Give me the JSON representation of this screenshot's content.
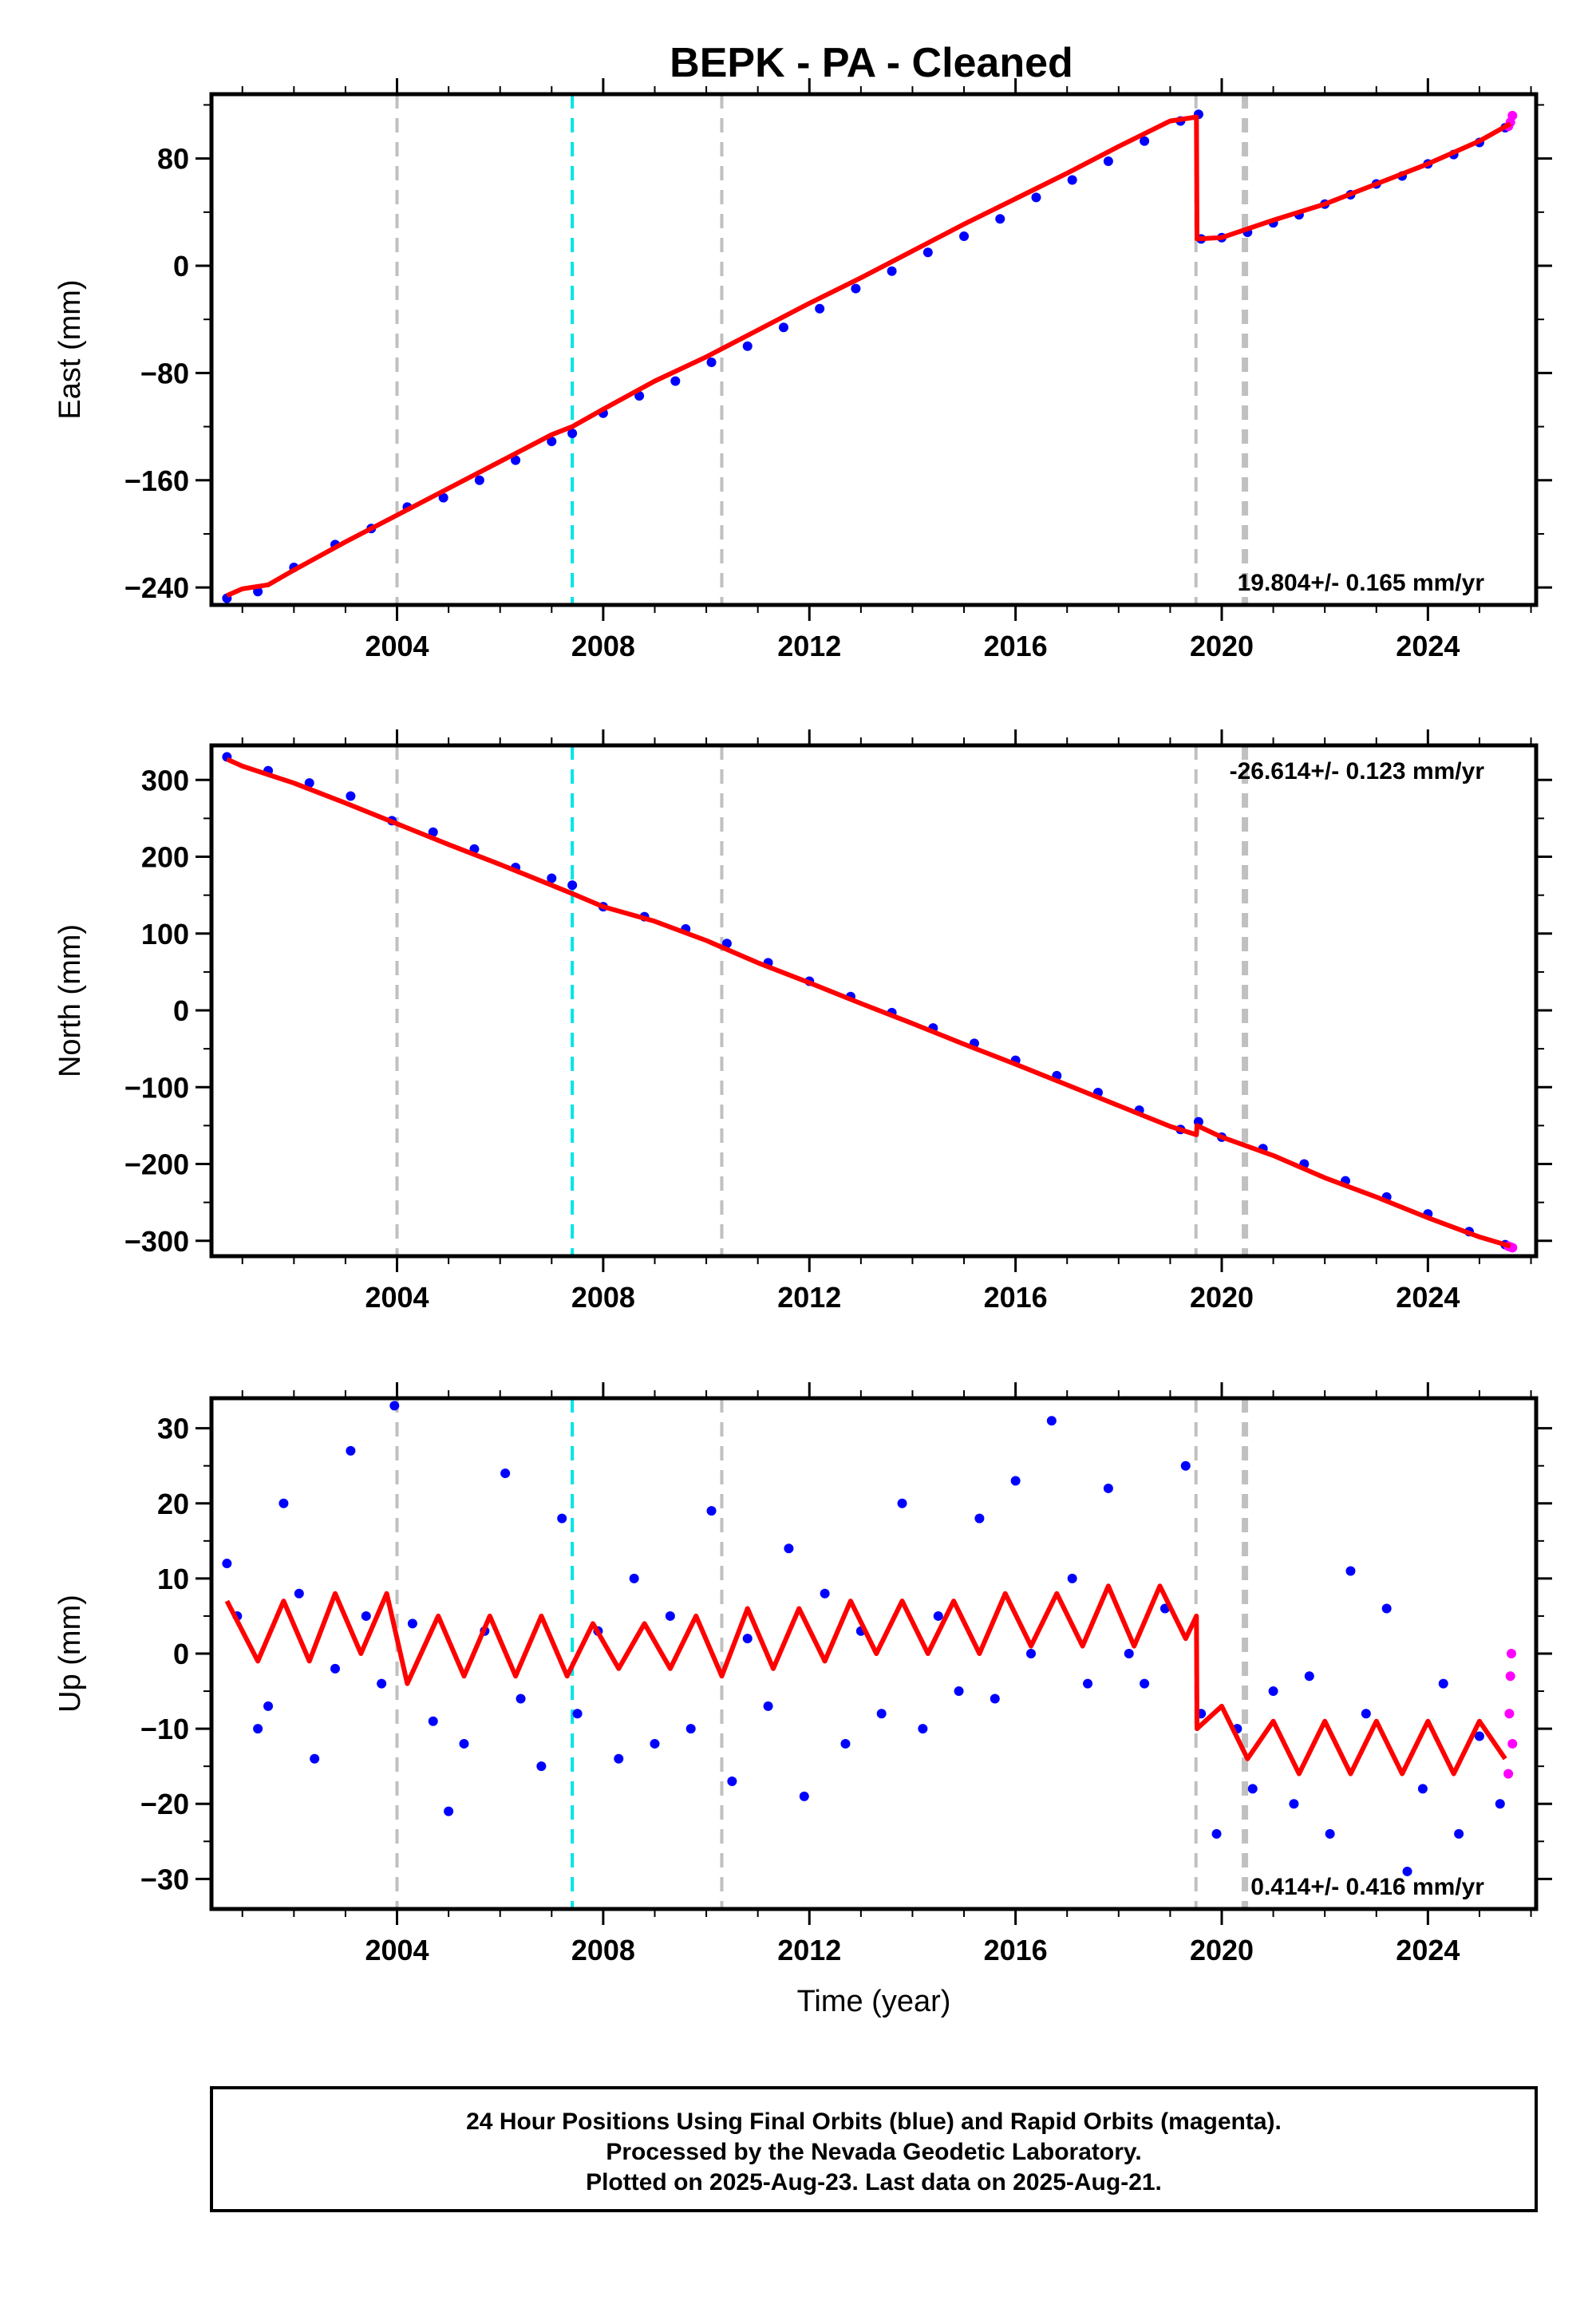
{
  "title": "BEPK  - PA - Cleaned",
  "colors": {
    "final_orbits": "#0000ff",
    "rapid_orbits": "#ff00ff",
    "model": "#ff0000",
    "event_gray": "#c0c0c0",
    "event_cyan": "#00e5e5",
    "frame": "#000000"
  },
  "chart_data": [
    {
      "type": "scatter",
      "panel": "east",
      "ylabel": "East (mm)",
      "xlabel": "",
      "xlim": [
        2000.4,
        2026.1
      ],
      "ylim": [
        -253,
        128
      ],
      "xticks": [
        2004,
        2008,
        2012,
        2016,
        2020,
        2024
      ],
      "yticks": [
        -240,
        -160,
        -80,
        0,
        80
      ],
      "rate": "19.804+/- 0.165 mm/yr",
      "rate_position": "bottom-right",
      "series": [
        {
          "kind": "final_orbits",
          "x": [
            2000.7,
            2001.3,
            2002.0,
            2002.8,
            2003.5,
            2004.2,
            2004.9,
            2005.6,
            2006.3,
            2007.0,
            2007.4,
            2008.0,
            2008.7,
            2009.4,
            2010.1,
            2010.8,
            2011.5,
            2012.2,
            2012.9,
            2013.6,
            2014.3,
            2015.0,
            2015.7,
            2016.4,
            2017.1,
            2017.8,
            2018.5,
            2019.2,
            2019.55,
            2019.6,
            2020.0,
            2020.5,
            2021.0,
            2021.5,
            2022.0,
            2022.5,
            2023.0,
            2023.5,
            2024.0,
            2024.5,
            2025.0,
            2025.5
          ],
          "y": [
            -248,
            -243,
            -225,
            -208,
            -196,
            -180,
            -173,
            -160,
            -145,
            -131,
            -125,
            -110,
            -97,
            -86,
            -72,
            -60,
            -46,
            -32,
            -17,
            -4,
            10,
            22,
            35,
            51,
            64,
            78,
            93,
            108,
            113,
            20,
            21,
            25,
            32,
            38,
            46,
            53,
            61,
            67,
            76,
            83,
            92,
            103
          ]
        },
        {
          "kind": "rapid_orbits",
          "x": [
            2025.56,
            2025.6,
            2025.64
          ],
          "y": [
            104,
            107,
            112
          ]
        },
        {
          "kind": "model",
          "x": [
            2000.7,
            2001.0,
            2001.5,
            2002.0,
            2003.0,
            2004.0,
            2005.0,
            2006.0,
            2007.0,
            2007.4,
            2008.0,
            2009.0,
            2010.0,
            2011.0,
            2012.0,
            2013.0,
            2014.0,
            2015.0,
            2016.0,
            2017.0,
            2018.0,
            2019.0,
            2019.51,
            2019.52,
            2020.0,
            2021.0,
            2022.0,
            2023.0,
            2024.0,
            2025.0,
            2025.6
          ],
          "y": [
            -246,
            -241,
            -238,
            -227,
            -206,
            -186,
            -166,
            -146,
            -126,
            -120,
            -107,
            -86,
            -68,
            -48,
            -28,
            -9,
            11,
            31,
            50,
            69,
            89,
            108,
            111,
            20,
            21,
            34,
            46,
            61,
            76,
            93,
            106
          ]
        }
      ]
    },
    {
      "type": "scatter",
      "panel": "north",
      "ylabel": "North (mm)",
      "xlabel": "",
      "xlim": [
        2000.4,
        2026.1
      ],
      "ylim": [
        -320,
        345
      ],
      "xticks": [
        2004,
        2008,
        2012,
        2016,
        2020,
        2024
      ],
      "yticks": [
        -300,
        -200,
        -100,
        0,
        100,
        200,
        300
      ],
      "rate": "-26.614+/- 0.123 mm/yr",
      "rate_position": "top-right",
      "series": [
        {
          "kind": "final_orbits",
          "x": [
            2000.7,
            2001.5,
            2002.3,
            2003.1,
            2003.9,
            2004.7,
            2005.5,
            2006.3,
            2007.0,
            2007.4,
            2008.0,
            2008.8,
            2009.6,
            2010.4,
            2011.2,
            2012.0,
            2012.8,
            2013.6,
            2014.4,
            2015.2,
            2016.0,
            2016.8,
            2017.6,
            2018.4,
            2019.2,
            2019.55,
            2020.0,
            2020.8,
            2021.6,
            2022.4,
            2023.2,
            2024.0,
            2024.8,
            2025.5
          ],
          "y": [
            330,
            312,
            296,
            279,
            247,
            232,
            210,
            186,
            172,
            163,
            135,
            122,
            106,
            87,
            62,
            38,
            18,
            -3,
            -23,
            -43,
            -65,
            -85,
            -107,
            -130,
            -155,
            -145,
            -165,
            -180,
            -200,
            -222,
            -243,
            -265,
            -288,
            -305
          ]
        },
        {
          "kind": "rapid_orbits",
          "x": [
            2025.56,
            2025.6,
            2025.64
          ],
          "y": [
            -307,
            -308,
            -309
          ]
        },
        {
          "kind": "model",
          "x": [
            2000.7,
            2001.0,
            2002.0,
            2003.0,
            2004.0,
            2005.0,
            2006.0,
            2007.0,
            2007.4,
            2008.0,
            2009.0,
            2010.0,
            2011.0,
            2012.0,
            2013.0,
            2014.0,
            2015.0,
            2016.0,
            2017.0,
            2018.0,
            2019.0,
            2019.51,
            2019.52,
            2020.0,
            2021.0,
            2022.0,
            2023.0,
            2024.0,
            2025.0,
            2025.6
          ],
          "y": [
            327,
            318,
            296,
            270,
            243,
            216,
            190,
            163,
            152,
            135,
            116,
            91,
            62,
            36,
            9,
            -17,
            -44,
            -70,
            -97,
            -124,
            -151,
            -162,
            -150,
            -165,
            -189,
            -218,
            -243,
            -270,
            -295,
            -307
          ]
        }
      ]
    },
    {
      "type": "scatter",
      "panel": "up",
      "ylabel": "Up (mm)",
      "xlabel": "Time (year)",
      "xlim": [
        2000.4,
        2026.1
      ],
      "ylim": [
        -34,
        34
      ],
      "xticks": [
        2004,
        2008,
        2012,
        2016,
        2020,
        2024
      ],
      "yticks": [
        -30,
        -20,
        -10,
        0,
        10,
        20,
        30
      ],
      "rate": "0.414+/- 0.416 mm/yr",
      "rate_position": "bottom-right",
      "series": [
        {
          "kind": "final_orbits",
          "x": [
            2000.7,
            2000.9,
            2001.3,
            2001.5,
            2001.8,
            2002.1,
            2002.4,
            2002.8,
            2003.1,
            2003.4,
            2003.7,
            2003.95,
            2004.3,
            2004.7,
            2005.0,
            2005.3,
            2005.7,
            2006.1,
            2006.4,
            2006.8,
            2007.2,
            2007.5,
            2007.9,
            2008.3,
            2008.6,
            2009.0,
            2009.3,
            2009.7,
            2010.1,
            2010.5,
            2010.8,
            2011.2,
            2011.6,
            2011.9,
            2012.3,
            2012.7,
            2013.0,
            2013.4,
            2013.8,
            2014.2,
            2014.5,
            2014.9,
            2015.3,
            2015.6,
            2016.0,
            2016.3,
            2016.7,
            2017.1,
            2017.4,
            2017.8,
            2018.2,
            2018.5,
            2018.9,
            2019.3,
            2019.6,
            2019.9,
            2020.3,
            2020.6,
            2021.0,
            2021.4,
            2021.7,
            2022.1,
            2022.5,
            2022.8,
            2023.2,
            2023.6,
            2023.9,
            2024.3,
            2024.6,
            2025.0,
            2025.4
          ],
          "y": [
            12,
            5,
            -10,
            -7,
            20,
            8,
            -14,
            -2,
            27,
            5,
            -4,
            33,
            4,
            -9,
            -21,
            -12,
            3,
            24,
            -6,
            -15,
            18,
            -8,
            3,
            -14,
            10,
            -12,
            5,
            -10,
            19,
            -17,
            2,
            -7,
            14,
            -19,
            8,
            -12,
            3,
            -8,
            20,
            -10,
            5,
            -5,
            18,
            -6,
            23,
            0,
            31,
            10,
            -4,
            22,
            0,
            -4,
            6,
            25,
            -8,
            -24,
            -10,
            -18,
            -5,
            -20,
            -3,
            -24,
            11,
            -8,
            6,
            -29,
            -18,
            -4,
            -24,
            -11,
            -20
          ]
        },
        {
          "kind": "rapid_orbits",
          "x": [
            2025.56,
            2025.58,
            2025.6,
            2025.62,
            2025.64
          ],
          "y": [
            -16,
            -8,
            -3,
            0,
            -12
          ]
        },
        {
          "kind": "model",
          "x": [
            2000.7,
            2001.3,
            2001.8,
            2002.3,
            2002.8,
            2003.3,
            2003.8,
            2004.2,
            2004.8,
            2005.3,
            2005.8,
            2006.3,
            2006.8,
            2007.3,
            2007.8,
            2008.3,
            2008.8,
            2009.3,
            2009.8,
            2010.3,
            2010.8,
            2011.3,
            2011.8,
            2012.3,
            2012.8,
            2013.3,
            2013.8,
            2014.3,
            2014.8,
            2015.3,
            2015.8,
            2016.3,
            2016.8,
            2017.3,
            2017.8,
            2018.3,
            2018.8,
            2019.3,
            2019.51,
            2019.52,
            2020.0,
            2020.5,
            2021.0,
            2021.5,
            2022.0,
            2022.5,
            2023.0,
            2023.5,
            2024.0,
            2024.5,
            2025.0,
            2025.5
          ],
          "y": [
            7,
            -1,
            7,
            -1,
            8,
            0,
            8,
            -4,
            5,
            -3,
            5,
            -3,
            5,
            -3,
            4,
            -2,
            4,
            -2,
            5,
            -3,
            6,
            -2,
            6,
            -1,
            7,
            0,
            7,
            0,
            7,
            0,
            8,
            1,
            8,
            1,
            9,
            1,
            9,
            2,
            5,
            -10,
            -7,
            -14,
            -9,
            -16,
            -9,
            -16,
            -9,
            -16,
            -9,
            -16,
            -9,
            -14
          ]
        }
      ]
    }
  ],
  "events": {
    "gray_x": [
      2004.0,
      2010.3,
      2019.5,
      2020.45
    ],
    "cyan_x": [
      2007.4
    ]
  },
  "footer": {
    "line1": "24 Hour Positions Using Final Orbits (blue) and Rapid Orbits (magenta).",
    "line2": "Processed by the Nevada Geodetic Laboratory.",
    "line3": "Plotted on 2025-Aug-23. Last data on 2025-Aug-21."
  }
}
